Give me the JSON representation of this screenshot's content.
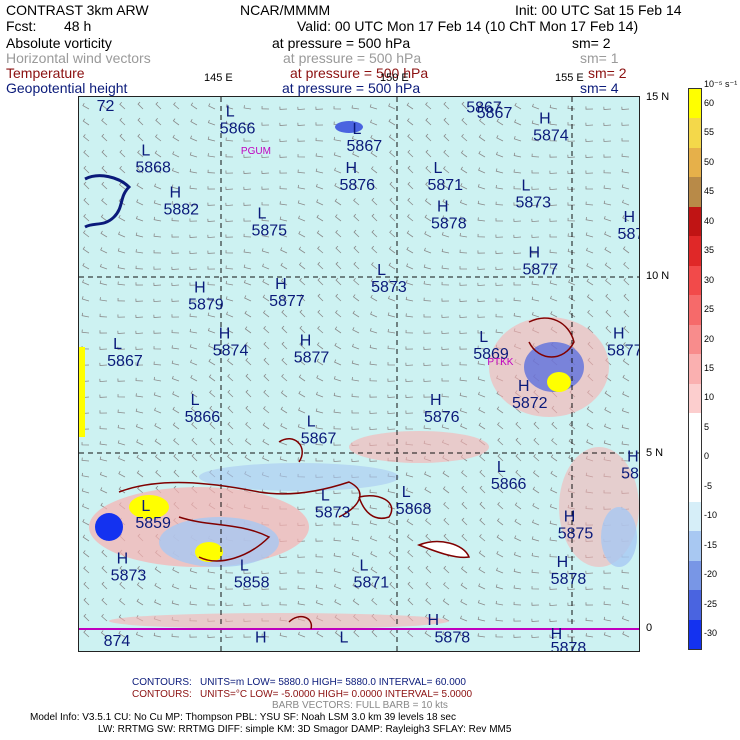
{
  "header": {
    "title": "CONTRAST  3km ARW",
    "fcst_label": "Fcst:",
    "fcst_value": "48 h",
    "org": "NCAR/MMMM",
    "init": "Init: 00 UTC Sat 15 Feb 14",
    "valid": "Valid: 00 UTC Mon 17 Feb 14 (10 ChT Mon 17 Feb 14)"
  },
  "fields": [
    {
      "name": "Absolute vorticity",
      "pressure": "at pressure =  500 hPa",
      "sm": "sm= 2",
      "color": "#000000"
    },
    {
      "name": "Horizontal wind vectors",
      "pressure": "at pressure =  500 hPa",
      "sm": "sm= 1",
      "color": "#9a9a9a"
    },
    {
      "name": "Temperature",
      "pressure": "at pressure =  500 hPa",
      "sm": "sm= 2",
      "color": "#8b1010"
    },
    {
      "name": "Geopotential height",
      "pressure": "at pressure =  500 hPa",
      "sm": "sm= 4",
      "color": "#0a1a7a"
    }
  ],
  "chart_data": {
    "type": "heatmap",
    "title": "CONTRAST 3km ARW 500 hPa analysis",
    "x_ticks": [
      "145 E",
      "150 E",
      "155 E"
    ],
    "y_ticks": [
      "15 N",
      "10 N",
      "5 N",
      "0"
    ],
    "colorbar": {
      "unit": "10⁻⁵ s⁻¹",
      "levels": [
        60,
        55,
        50,
        45,
        40,
        35,
        30,
        25,
        20,
        15,
        10,
        5,
        0,
        -5,
        -10,
        -15,
        -20,
        -25,
        -30
      ],
      "colors": [
        "#ffff00",
        "#f4d84a",
        "#e6b04a",
        "#b88a48",
        "#c01414",
        "#e02828",
        "#f24a4a",
        "#f66a6a",
        "#f88c8c",
        "#fab0b0",
        "#fccece",
        "#ffffff",
        "#ffffff",
        "#ffffff",
        "#d6eef8",
        "#a8c8f2",
        "#7896e6",
        "#4a64e0",
        "#1432f0"
      ]
    },
    "height_labels": [
      {
        "t": "L",
        "v": "5866",
        "lon": 144.2,
        "lat": 14.5
      },
      {
        "t": "L",
        "v": "5867",
        "lon": 147.8,
        "lat": 14.0
      },
      {
        "t": "L",
        "v": "5867",
        "lon": 151.2,
        "lat": 15.1
      },
      {
        "t": "H",
        "v": "5874",
        "lon": 153.1,
        "lat": 14.3
      },
      {
        "t": "L",
        "v": "5868",
        "lon": 141.8,
        "lat": 13.4
      },
      {
        "t": "H",
        "v": "5876",
        "lon": 147.6,
        "lat": 12.9
      },
      {
        "t": "L",
        "v": "5871",
        "lon": 150.1,
        "lat": 12.9
      },
      {
        "t": "L",
        "v": "5873",
        "lon": 152.6,
        "lat": 12.4
      },
      {
        "t": "H",
        "v": "5882",
        "lon": 142.6,
        "lat": 12.2
      },
      {
        "t": "L",
        "v": "5875",
        "lon": 145.1,
        "lat": 11.6
      },
      {
        "t": "H",
        "v": "5878",
        "lon": 150.2,
        "lat": 11.8
      },
      {
        "t": "H",
        "v": "5873",
        "lon": 155.5,
        "lat": 11.5
      },
      {
        "t": "H",
        "v": "5877",
        "lon": 152.8,
        "lat": 10.5
      },
      {
        "t": "L",
        "v": "5873",
        "lon": 148.5,
        "lat": 10.0
      },
      {
        "t": "H",
        "v": "5879",
        "lon": 143.3,
        "lat": 9.5
      },
      {
        "t": "H",
        "v": "5877",
        "lon": 145.6,
        "lat": 9.6
      },
      {
        "t": "L",
        "v": "5867",
        "lon": 156.2,
        "lat": 9.0
      },
      {
        "t": "L",
        "v": "5867",
        "lon": 141.0,
        "lat": 7.9
      },
      {
        "t": "H",
        "v": "5874",
        "lon": 144.0,
        "lat": 8.2
      },
      {
        "t": "H",
        "v": "5877",
        "lon": 146.3,
        "lat": 8.0
      },
      {
        "t": "L",
        "v": "5869",
        "lon": 151.4,
        "lat": 8.1
      },
      {
        "t": "H",
        "v": "5877",
        "lon": 155.2,
        "lat": 8.2
      },
      {
        "t": "H",
        "v": "5872",
        "lon": 152.5,
        "lat": 6.7
      },
      {
        "t": "H",
        "v": "5875",
        "lon": 156.5,
        "lat": 6.4
      },
      {
        "t": "L",
        "v": "5866",
        "lon": 143.2,
        "lat": 6.3
      },
      {
        "t": "L",
        "v": "5867",
        "lon": 146.5,
        "lat": 5.7
      },
      {
        "t": "H",
        "v": "5876",
        "lon": 150.0,
        "lat": 6.3
      },
      {
        "t": "H",
        "v": "5878",
        "lon": 155.6,
        "lat": 4.7
      },
      {
        "t": "L",
        "v": "5866",
        "lon": 151.9,
        "lat": 4.4
      },
      {
        "t": "L",
        "v": "5873",
        "lon": 146.9,
        "lat": 3.6
      },
      {
        "t": "L",
        "v": "5868",
        "lon": 149.2,
        "lat": 3.7
      },
      {
        "t": "H",
        "v": "5875",
        "lon": 153.8,
        "lat": 3.0
      },
      {
        "t": "L",
        "v": "5859",
        "lon": 141.8,
        "lat": 3.3
      },
      {
        "t": "H",
        "v": "5876",
        "lon": 156.6,
        "lat": 2.6
      },
      {
        "t": "H",
        "v": "5873",
        "lon": 141.1,
        "lat": 1.8
      },
      {
        "t": "L",
        "v": "5858",
        "lon": 144.6,
        "lat": 1.6
      },
      {
        "t": "L",
        "v": "5871",
        "lon": 148.0,
        "lat": 1.6
      },
      {
        "t": "H",
        "v": "5878",
        "lon": 153.6,
        "lat": 1.7
      }
    ],
    "edge_labels": [
      {
        "v": "72",
        "lon": 140.7,
        "lat": 15.0
      },
      {
        "v": "5867",
        "lon": 151.5,
        "lat": 14.8
      },
      {
        "v": "874",
        "lon": 140.9,
        "lat": -0.2
      },
      {
        "v": "H",
        "lon": 145.2,
        "lat": -0.1
      },
      {
        "v": "L",
        "lon": 147.6,
        "lat": -0.1
      },
      {
        "v": "H",
        "lon": 150.1,
        "lat": 0.4
      },
      {
        "v": "5878",
        "lon": 150.3,
        "lat": -0.1
      },
      {
        "v": "H",
        "lon": 153.6,
        "lat": 0.0
      },
      {
        "v": "5878",
        "lon": 153.6,
        "lat": -0.4
      },
      {
        "v": "H",
        "lon": 156.9,
        "lat": -0.1
      },
      {
        "v": "L",
        "lon": 156.6,
        "lat": 15.1
      }
    ],
    "stations": [
      {
        "code": "PGUM",
        "lon": 144.8,
        "lat": 13.5
      },
      {
        "code": "PTKK",
        "lon": 151.8,
        "lat": 7.5
      }
    ]
  },
  "footer": {
    "contours_label": "CONTOURS:",
    "contour1": "UNITS=m   LOW=   5880.0        HIGH=  5880.0      INTERVAL=    60.000",
    "contour2": "UNITS=°C   LOW=  -5.0000      HIGH=  0.0000      INTERVAL=    5.0000",
    "barb": "BARB VECTORS:  FULL BARB = 10 kts",
    "model1": "Model Info: V3.5.1     CU: No Cu      MP: Thompson      PBL: YSU      SF: Noah LSM      3.0 km   39 levels   18 sec",
    "model2": "LW: RRTMG   SW: RRTMG   DIFF: simple KM: 3D Smagor DAMP: Rayleigh3   SFLAY: Rev MM5"
  }
}
